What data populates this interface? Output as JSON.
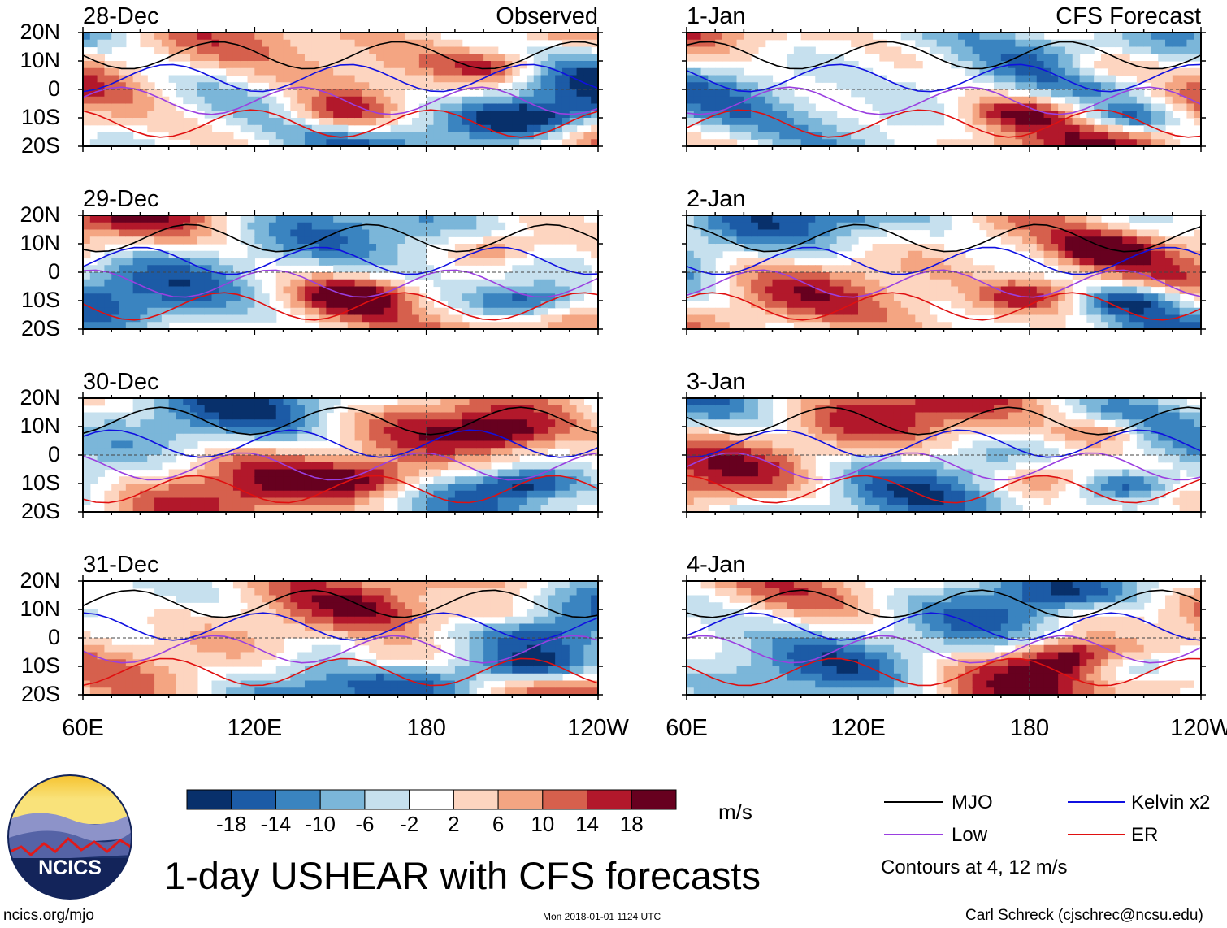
{
  "title": "1-day USHEAR with CFS forecasts",
  "footer": {
    "left": "ncics.org/mjo",
    "center": "Mon 2018-01-01 1124 UTC",
    "right": "Carl Schreck (cjschrec@ncsu.edu)"
  },
  "logo": {
    "text": "NCICS"
  },
  "panels_left_header": "Observed",
  "panels_right_header": "CFS Forecast",
  "chart_data": {
    "type": "heatmap",
    "variable": "USHEAR",
    "units": "m/s",
    "x_ticks": [
      "60E",
      "120E",
      "180",
      "120W"
    ],
    "y_ticks": [
      "20N",
      "10N",
      "0",
      "10S",
      "20S"
    ],
    "lon_range": [
      60,
      240
    ],
    "lat_range": [
      -20,
      20
    ],
    "panels": [
      {
        "date": "28-Dec",
        "kind": "Observed"
      },
      {
        "date": "29-Dec",
        "kind": "Observed"
      },
      {
        "date": "30-Dec",
        "kind": "Observed"
      },
      {
        "date": "31-Dec",
        "kind": "Observed"
      },
      {
        "date": "1-Jan",
        "kind": "CFS Forecast"
      },
      {
        "date": "2-Jan",
        "kind": "CFS Forecast"
      },
      {
        "date": "3-Jan",
        "kind": "CFS Forecast"
      },
      {
        "date": "4-Jan",
        "kind": "CFS Forecast"
      }
    ],
    "colorbar": {
      "labels": [
        "-18",
        "-14",
        "-10",
        "-6",
        "-2",
        "2",
        "6",
        "10",
        "14",
        "18"
      ],
      "colors": [
        "#08306b",
        "#1c5ba6",
        "#3a84c0",
        "#7bb6d9",
        "#c6e0ee",
        "#ffffff",
        "#fdd5c0",
        "#f4a582",
        "#d6604d",
        "#b2182b",
        "#67001f"
      ]
    },
    "legend": [
      {
        "label": "MJO",
        "color": "#000000"
      },
      {
        "label": "Kelvin x2",
        "color": "#1010e0"
      },
      {
        "label": "Low",
        "color": "#9a3fe0"
      },
      {
        "label": "ER",
        "color": "#e01010"
      }
    ],
    "contour_note": "Contours at 4, 12 m/s"
  }
}
